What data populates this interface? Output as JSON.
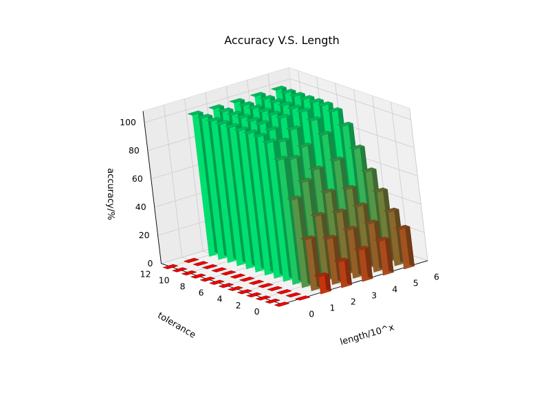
{
  "chart_data": {
    "type": "bar3d",
    "title": "Accuracy V.S. Length",
    "xlabel": "length/10^x",
    "ylabel": "tolerance",
    "zlabel": "accuracy/%",
    "x_ticks": [
      "0",
      "1",
      "2",
      "3",
      "4",
      "5",
      "6"
    ],
    "y_ticks": [
      "0",
      "2",
      "4",
      "6",
      "8",
      "10",
      "12"
    ],
    "z_ticks": [
      "0",
      "20",
      "40",
      "60",
      "80",
      "100"
    ],
    "xlim": [
      0,
      7
    ],
    "ylim": [
      0,
      13
    ],
    "zlim": [
      0,
      100
    ],
    "grid": true,
    "x": [
      0,
      1,
      2,
      3,
      4,
      5,
      6
    ],
    "y": [
      0,
      1,
      2,
      3,
      4,
      5,
      6,
      7,
      8,
      9,
      10,
      11,
      12
    ],
    "values_note_rows": "values[x_index][y_index] = accuracy (%)",
    "values": [
      [
        0,
        0,
        0,
        0,
        0,
        0,
        0,
        0,
        0,
        0,
        0,
        0,
        0
      ],
      [
        0,
        0,
        0,
        0,
        0,
        0,
        0,
        0,
        0,
        0,
        0,
        0,
        0
      ],
      [
        12,
        36,
        62,
        88,
        98,
        100,
        100,
        100,
        100,
        100,
        100,
        100,
        100
      ],
      [
        18,
        32,
        46,
        68,
        82,
        92,
        98,
        100,
        100,
        100,
        100,
        100,
        100
      ],
      [
        22,
        34,
        44,
        56,
        70,
        84,
        94,
        100,
        100,
        100,
        100,
        100,
        100
      ],
      [
        24,
        34,
        44,
        54,
        72,
        88,
        96,
        100,
        100,
        100,
        100,
        100,
        100
      ],
      [
        28,
        38,
        50,
        62,
        76,
        90,
        98,
        100,
        100,
        100,
        100,
        100,
        100
      ]
    ],
    "colors": {
      "low": "#ff2000",
      "high": "#00ff80",
      "zero": "#ee0000"
    }
  }
}
